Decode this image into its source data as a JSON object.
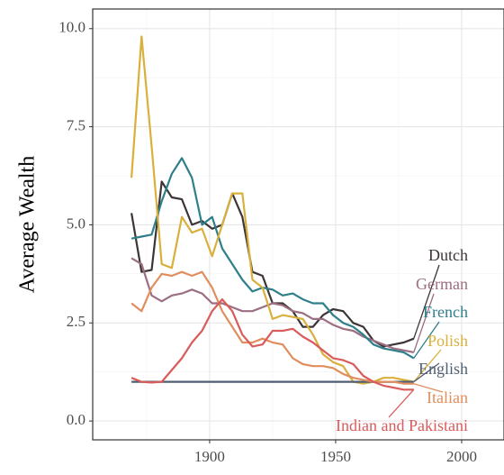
{
  "chart_data": {
    "type": "line",
    "y_label": "Average Wealth",
    "x": [
      1869,
      1873,
      1877,
      1881,
      1885,
      1889,
      1893,
      1897,
      1901,
      1905,
      1909,
      1913,
      1917,
      1921,
      1925,
      1929,
      1933,
      1937,
      1941,
      1945,
      1949,
      1953,
      1957,
      1961,
      1965,
      1969,
      1973,
      1977,
      1981
    ],
    "xlim": [
      1853.6,
      2016.8
    ],
    "xticks": [
      1900,
      1950,
      2000
    ],
    "ylim": [
      -0.48,
      10.5
    ],
    "yticks": [
      {
        "value": 0,
        "label": "0.0"
      },
      2.5,
      {
        "value": 5,
        "label": "5.0"
      },
      7.5,
      {
        "value": 10,
        "label": "10.0"
      }
    ],
    "grid": true,
    "series": [
      {
        "name": "Dutch",
        "color": "#3d3535",
        "values": [
          5.3,
          3.8,
          3.85,
          6.1,
          5.7,
          5.65,
          5.0,
          5.1,
          4.9,
          5.0,
          5.8,
          5.2,
          3.8,
          3.7,
          3.0,
          3.0,
          2.8,
          2.4,
          2.4,
          2.7,
          2.85,
          2.8,
          2.5,
          2.4,
          2.05,
          1.9,
          1.95,
          2.0,
          2.1
        ]
      },
      {
        "name": "German",
        "color": "#9c6e82",
        "values": [
          4.15,
          4.0,
          3.2,
          3.05,
          3.2,
          3.25,
          3.35,
          3.25,
          3.0,
          3.0,
          2.9,
          2.8,
          2.8,
          2.9,
          3.0,
          2.95,
          2.8,
          2.75,
          2.6,
          2.6,
          2.45,
          2.35,
          2.3,
          2.15,
          2.05,
          1.95,
          1.85,
          1.8,
          1.75
        ]
      },
      {
        "name": "French",
        "color": "#2e7f8a",
        "values": [
          4.65,
          4.7,
          4.75,
          5.6,
          6.3,
          6.7,
          6.2,
          5.0,
          5.2,
          4.4,
          4.0,
          3.6,
          3.3,
          3.4,
          3.35,
          3.2,
          3.25,
          3.1,
          3.0,
          3.0,
          2.7,
          2.5,
          2.4,
          2.2,
          1.95,
          1.85,
          1.8,
          1.75,
          1.6
        ]
      },
      {
        "name": "Polish",
        "color": "#d9b03c",
        "values": [
          6.2,
          9.8,
          7.0,
          4.0,
          3.9,
          5.2,
          4.8,
          4.9,
          4.2,
          5.0,
          5.8,
          5.8,
          3.6,
          3.4,
          2.6,
          2.7,
          2.65,
          2.6,
          2.2,
          1.7,
          1.5,
          1.4,
          1.0,
          0.95,
          1.0,
          1.1,
          1.1,
          1.05,
          1.0
        ]
      },
      {
        "name": "English",
        "color": "#4f5e73",
        "values": [
          1,
          1,
          1,
          1,
          1,
          1,
          1,
          1,
          1,
          1,
          1,
          1,
          1,
          1,
          1,
          1,
          1,
          1,
          1,
          1,
          1,
          1,
          1,
          1,
          1,
          1,
          1,
          1,
          1
        ]
      },
      {
        "name": "Italian",
        "color": "#e08e5e",
        "values": [
          3.0,
          2.8,
          3.4,
          3.75,
          3.7,
          3.8,
          3.7,
          3.8,
          3.4,
          2.8,
          2.4,
          2.0,
          2.0,
          2.1,
          2.0,
          1.95,
          1.6,
          1.45,
          1.4,
          1.4,
          1.35,
          1.2,
          1.1,
          1.05,
          1.0,
          1.0,
          1.0,
          0.95,
          0.95
        ]
      },
      {
        "name": "Indian and Pakistani",
        "color": "#d95b5b",
        "values": [
          1.1,
          1.0,
          0.98,
          1.0,
          1.3,
          1.6,
          2.0,
          2.3,
          2.8,
          3.1,
          2.8,
          2.2,
          1.9,
          1.95,
          2.3,
          2.3,
          2.35,
          2.15,
          2.0,
          1.8,
          1.6,
          1.55,
          1.45,
          1.15,
          1.0,
          0.9,
          0.85,
          0.8,
          0.8
        ]
      }
    ]
  }
}
